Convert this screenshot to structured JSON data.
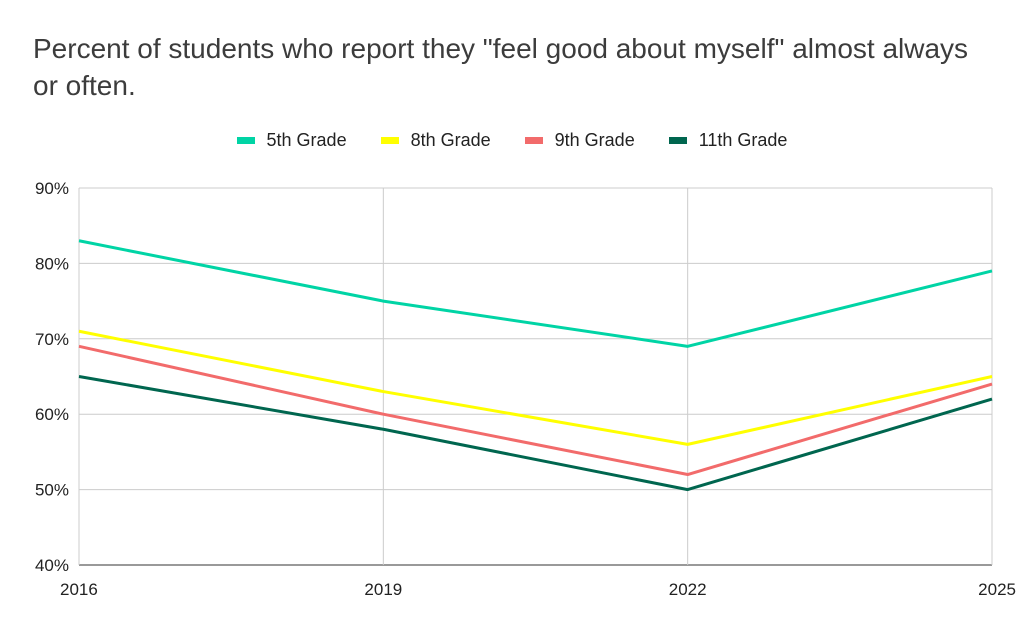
{
  "chart_data": {
    "type": "line",
    "title": "Percent of students who report they \"feel good about myself\" almost always or often.",
    "categories": [
      "2016",
      "2019",
      "2022",
      "2025"
    ],
    "series": [
      {
        "name": "5th Grade",
        "color": "#00d4a5",
        "values": [
          83,
          75,
          69,
          79
        ]
      },
      {
        "name": "8th Grade",
        "color": "#ffff00",
        "values": [
          71,
          63,
          56,
          65
        ]
      },
      {
        "name": "9th Grade",
        "color": "#f26b6b",
        "values": [
          69,
          60,
          52,
          64
        ]
      },
      {
        "name": "11th Grade",
        "color": "#00664f",
        "values": [
          65,
          58,
          50,
          62
        ]
      }
    ],
    "ylim": [
      40,
      90
    ],
    "yticks": [
      "40%",
      "50%",
      "60%",
      "70%",
      "80%",
      "90%"
    ],
    "grid": true,
    "legend": "top"
  }
}
